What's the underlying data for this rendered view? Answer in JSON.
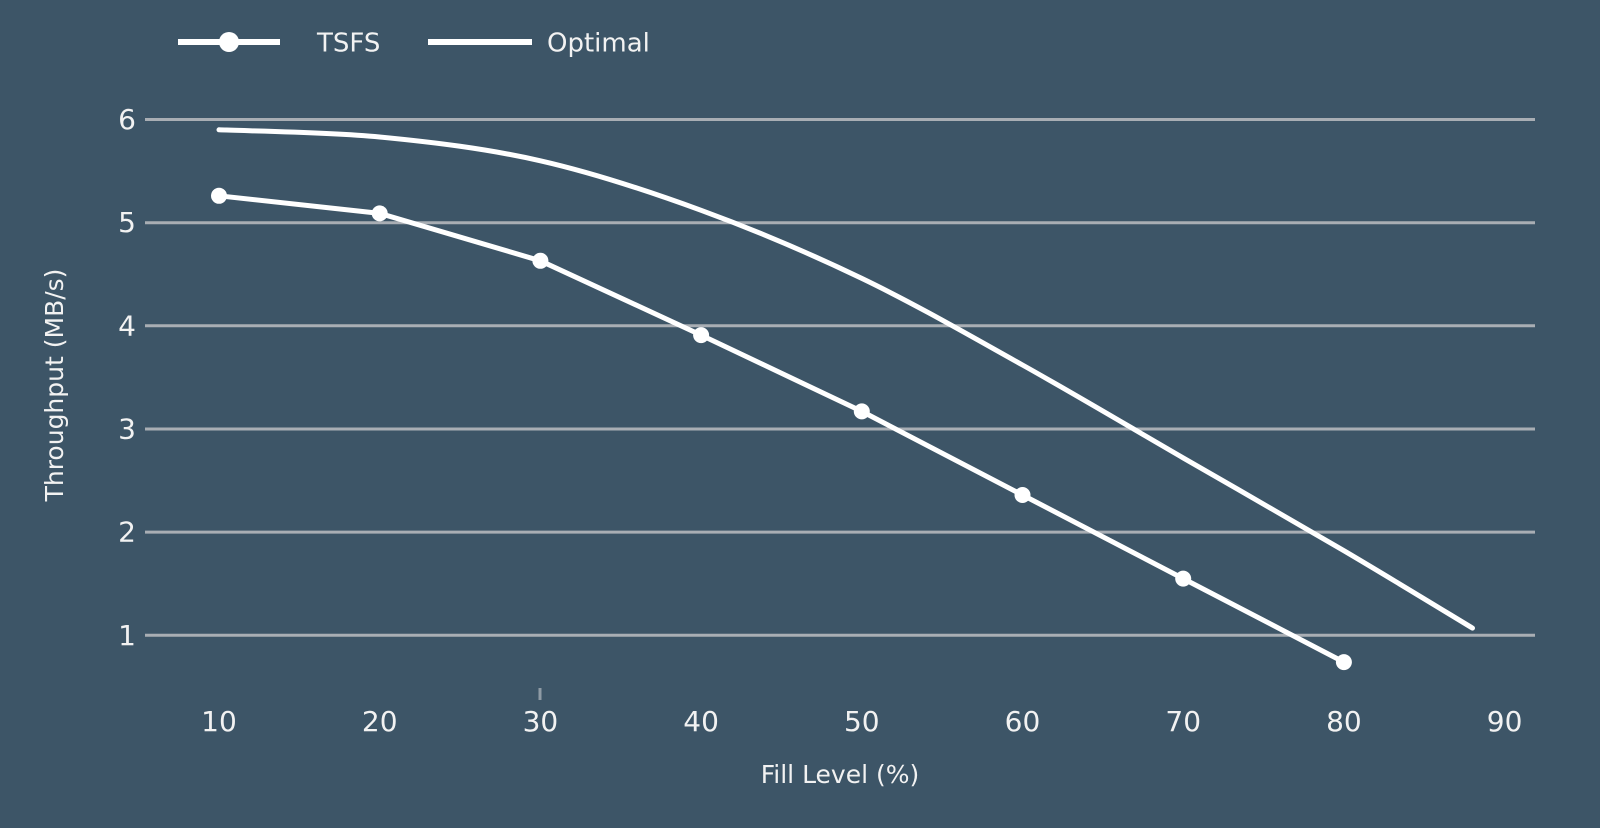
{
  "colors": {
    "background": "#3d5567",
    "grid": "#a9aeb4",
    "text": "#f2f2f2",
    "series": "#ffffff",
    "minor_tick": "#8f9ba5"
  },
  "chart_data": {
    "type": "line",
    "title": "",
    "xlabel": "Fill Level (%)",
    "ylabel": "Throughput (MB/s)",
    "x_ticks": [
      10,
      20,
      30,
      40,
      50,
      60,
      70,
      80,
      90
    ],
    "y_ticks": [
      1,
      2,
      3,
      4,
      5,
      6
    ],
    "xlim": [
      5.4,
      92
    ],
    "ylim": [
      0.6,
      6.3
    ],
    "grid": "horizontal",
    "legend_position": "top-left",
    "series": [
      {
        "name": "TSFS",
        "marker": "circle",
        "smooth": false,
        "x": [
          10,
          20,
          30,
          40,
          50,
          60,
          70,
          80
        ],
        "y": [
          5.26,
          5.09,
          4.63,
          3.91,
          3.17,
          2.36,
          1.55,
          0.74
        ]
      },
      {
        "name": "Optimal",
        "marker": "none",
        "smooth": true,
        "x": [
          10,
          20,
          30,
          40,
          50,
          60,
          70,
          80,
          88
        ],
        "y": [
          5.9,
          5.83,
          5.6,
          5.12,
          4.46,
          3.62,
          2.72,
          1.82,
          1.07
        ]
      }
    ]
  }
}
